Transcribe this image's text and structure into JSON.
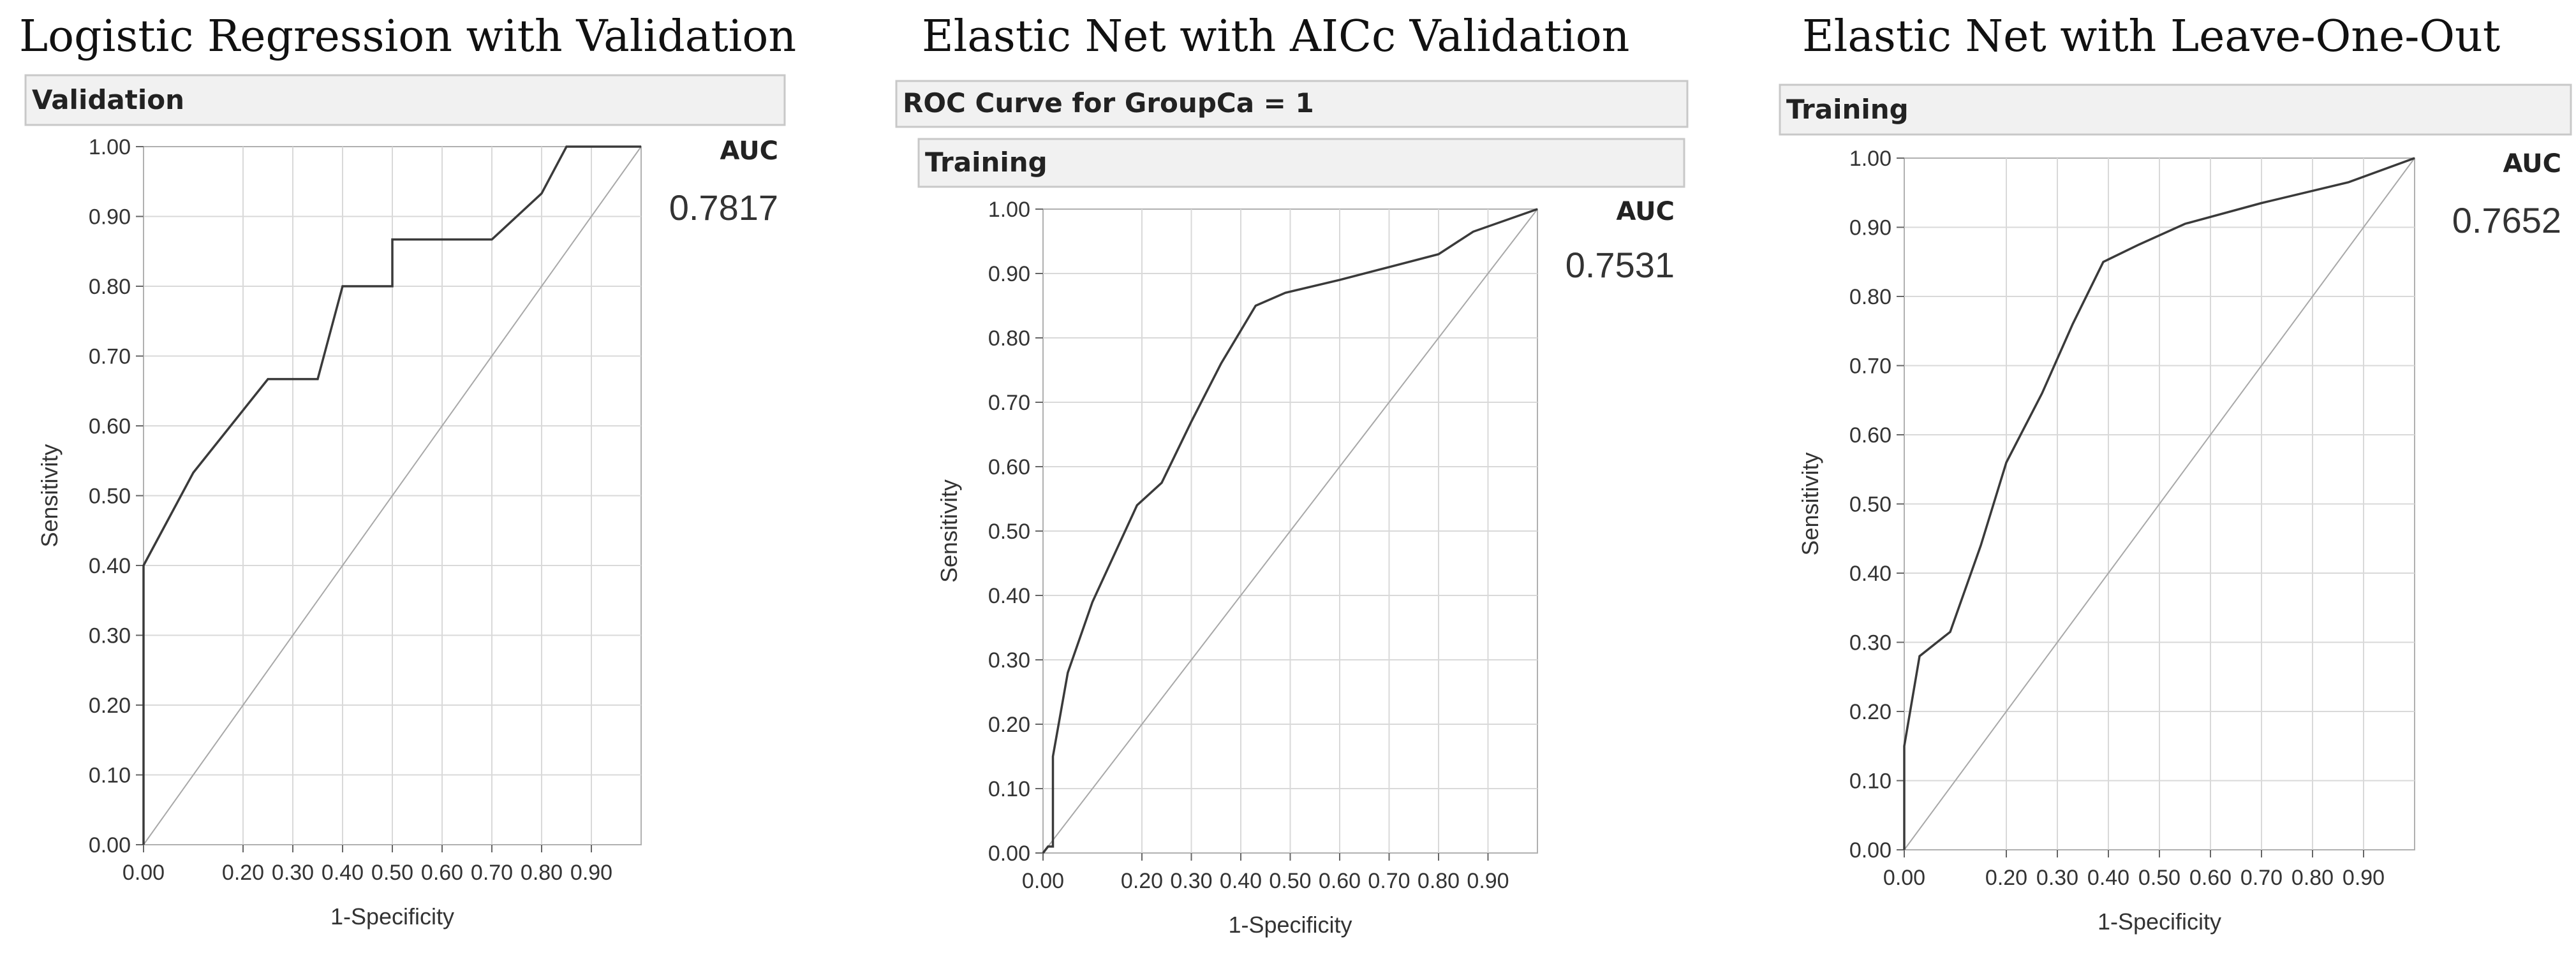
{
  "chart_data": [
    {
      "type": "line",
      "title": "Logistic Regression with Validation",
      "headers": [
        "Validation"
      ],
      "xlabel": "1-Specificity",
      "ylabel": "Sensitivity",
      "xlim": [
        0,
        1
      ],
      "ylim": [
        0,
        1
      ],
      "x_ticks": [
        "0.00",
        "0.20",
        "0.30",
        "0.40",
        "0.50",
        "0.60",
        "0.70",
        "0.80",
        "0.90"
      ],
      "x_tick_values": [
        0,
        0.2,
        0.3,
        0.4,
        0.5,
        0.6,
        0.7,
        0.8,
        0.9
      ],
      "y_ticks": [
        "0.00",
        "0.10",
        "0.20",
        "0.30",
        "0.40",
        "0.50",
        "0.60",
        "0.70",
        "0.80",
        "0.90",
        "1.00"
      ],
      "grid": true,
      "auc_label": "AUC",
      "auc_value": "0.7817",
      "series": [
        {
          "x": [
            0,
            0,
            0.1,
            0.25,
            0.35,
            0.4,
            0.4,
            0.5,
            0.5,
            0.7,
            0.8,
            0.85,
            1.0
          ],
          "y": [
            0,
            0.4,
            0.533,
            0.667,
            0.667,
            0.8,
            0.8,
            0.8,
            0.867,
            0.867,
            0.933,
            1.0,
            1.0
          ]
        }
      ],
      "reference_line": {
        "x": [
          0,
          1
        ],
        "y": [
          0,
          1
        ]
      }
    },
    {
      "type": "line",
      "title": "Elastic Net with AICc Validation",
      "headers": [
        "ROC Curve for GroupCa = 1",
        "Training"
      ],
      "xlabel": "1-Specificity",
      "ylabel": "Sensitivity",
      "xlim": [
        0,
        1
      ],
      "ylim": [
        0,
        1
      ],
      "x_ticks": [
        "0.00",
        "0.20",
        "0.30",
        "0.40",
        "0.50",
        "0.60",
        "0.70",
        "0.80",
        "0.90"
      ],
      "x_tick_values": [
        0,
        0.2,
        0.3,
        0.4,
        0.5,
        0.6,
        0.7,
        0.8,
        0.9
      ],
      "y_ticks": [
        "0.00",
        "0.10",
        "0.20",
        "0.30",
        "0.40",
        "0.50",
        "0.60",
        "0.70",
        "0.80",
        "0.90",
        "1.00"
      ],
      "grid": true,
      "auc_label": "AUC",
      "auc_value": "0.7531",
      "series": [
        {
          "x": [
            0,
            0.01,
            0.02,
            0.02,
            0.05,
            0.1,
            0.19,
            0.24,
            0.3,
            0.36,
            0.43,
            0.49,
            0.6,
            0.7,
            0.8,
            0.87,
            1.0
          ],
          "y": [
            0,
            0.01,
            0.01,
            0.15,
            0.28,
            0.39,
            0.54,
            0.575,
            0.67,
            0.76,
            0.85,
            0.87,
            0.89,
            0.91,
            0.93,
            0.965,
            1.0
          ]
        }
      ],
      "reference_line": {
        "x": [
          0,
          1
        ],
        "y": [
          0,
          1
        ]
      }
    },
    {
      "type": "line",
      "title": "Elastic Net with Leave-One-Out",
      "headers": [
        "Training"
      ],
      "xlabel": "1-Specificity",
      "ylabel": "Sensitivity",
      "xlim": [
        0,
        1
      ],
      "ylim": [
        0,
        1
      ],
      "x_ticks": [
        "0.00",
        "0.20",
        "0.30",
        "0.40",
        "0.50",
        "0.60",
        "0.70",
        "0.80",
        "0.90"
      ],
      "x_tick_values": [
        0,
        0.2,
        0.3,
        0.4,
        0.5,
        0.6,
        0.7,
        0.8,
        0.9
      ],
      "y_ticks": [
        "0.00",
        "0.10",
        "0.20",
        "0.30",
        "0.40",
        "0.50",
        "0.60",
        "0.70",
        "0.80",
        "0.90",
        "1.00"
      ],
      "grid": true,
      "auc_label": "AUC",
      "auc_value": "0.7652",
      "series": [
        {
          "x": [
            0,
            0,
            0.03,
            0.09,
            0.15,
            0.2,
            0.27,
            0.33,
            0.39,
            0.46,
            0.55,
            0.7,
            0.87,
            1.0
          ],
          "y": [
            0,
            0.15,
            0.28,
            0.315,
            0.44,
            0.56,
            0.66,
            0.76,
            0.85,
            0.875,
            0.905,
            0.935,
            0.965,
            1.0
          ]
        }
      ],
      "reference_line": {
        "x": [
          0,
          1
        ],
        "y": [
          0,
          1
        ]
      }
    }
  ]
}
